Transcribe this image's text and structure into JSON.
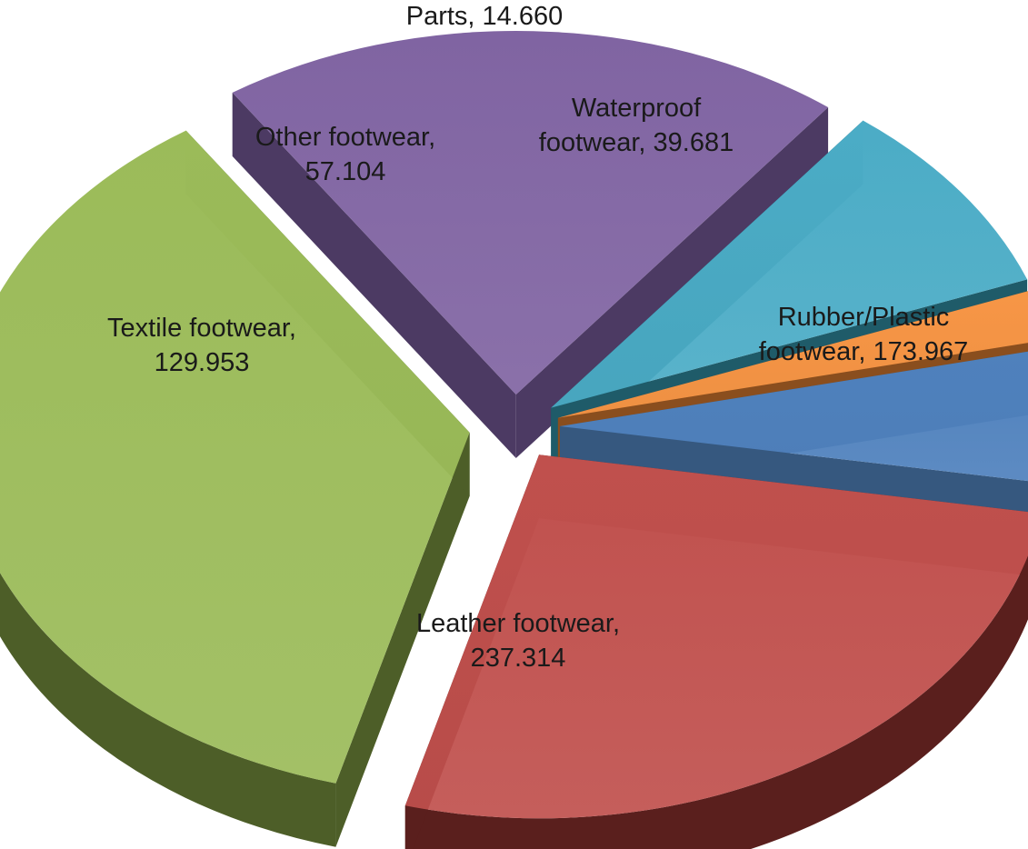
{
  "chart_data": {
    "type": "pie",
    "title": "",
    "categories": [
      "Waterproof footwear",
      "Rubber/Plastic footwear",
      "Leather footwear",
      "Textile footwear",
      "Other footwear",
      "Parts"
    ],
    "values": [
      39.681,
      173.967,
      237.314,
      129.953,
      57.104,
      14.66
    ],
    "data_labels": [
      [
        "Waterproof",
        "footwear, 39.681"
      ],
      [
        "Rubber/Plastic",
        "footwear, 173.967"
      ],
      [
        "Leather footwear,",
        "237.314"
      ],
      [
        "Textile footwear,",
        "129.953"
      ],
      [
        "Other footwear,",
        "57.104"
      ],
      [
        "Parts, 14.660"
      ]
    ],
    "colors": [
      "#4f81bd",
      "#c0504d",
      "#9bbb59",
      "#8064a2",
      "#4bacc6",
      "#f79646"
    ],
    "side_colors": [
      "#36587f",
      "#5a1f1d",
      "#4d5e28",
      "#4c3a63",
      "#1f5b69",
      "#8a4e1e"
    ],
    "exploded": true,
    "style": "3d",
    "legend": "none"
  }
}
